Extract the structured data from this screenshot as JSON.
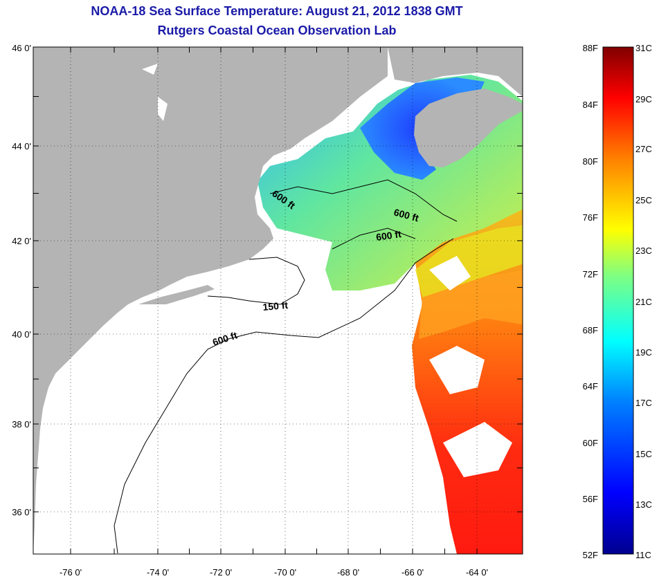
{
  "titles": {
    "line1": "NOAA-18 Sea Surface Temperature:  August 21, 2012 1838 GMT",
    "line2": "Rutgers Coastal Ocean Observation Lab"
  },
  "map": {
    "lat_labels": [
      "46 0'",
      "44 0'",
      "42 0'",
      "40 0'",
      "38 0'",
      "36 0'"
    ],
    "lon_labels": [
      "-76 0'",
      "-74 0'",
      "-72 0'",
      "-70 0'",
      "-68 0'",
      "-66 0'",
      "-64 0'"
    ],
    "contour_labels": [
      "600 ft",
      "600 ft",
      "600 ft",
      "150 ft",
      "600 ft"
    ],
    "land_color": "#b4b4b4",
    "no_data_color": "#ffffff"
  },
  "colorbar": {
    "f_labels": [
      "88F",
      "84F",
      "80F",
      "76F",
      "72F",
      "68F",
      "64F",
      "60F",
      "56F",
      "52F"
    ],
    "c_labels": [
      "31C",
      "29C",
      "27C",
      "25C",
      "23C",
      "21C",
      "19C",
      "17C",
      "15C",
      "13C",
      "11C"
    ]
  }
}
